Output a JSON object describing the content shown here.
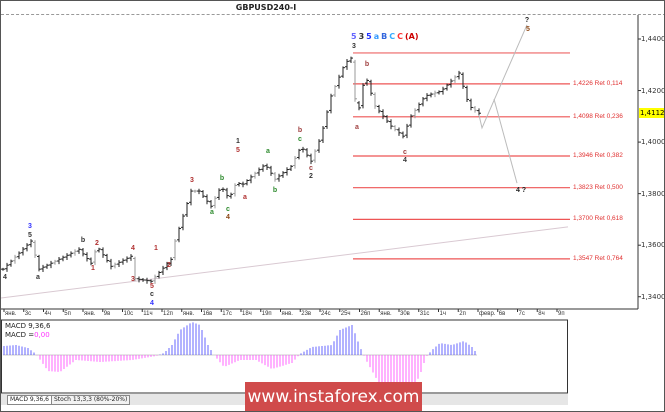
{
  "window": {
    "title": "GBPUSD240-I",
    "current_price": "1,4112"
  },
  "chart_data": {
    "type": "ohlc",
    "symbol": "GBPUSD240-I",
    "ylim": [
      1.338,
      1.448
    ],
    "y_ticks": [
      "1,4400",
      "1,4200",
      "1,4000",
      "1,3800",
      "1,3600",
      "1,3400"
    ],
    "y_tick_values": [
      1.44,
      1.42,
      1.4,
      1.38,
      1.36,
      1.34
    ],
    "x_tick_labels": [
      "янв.",
      "3с",
      "4ч",
      "5п",
      "янв.",
      "9в",
      "10с",
      "11ч",
      "12п",
      "янв.",
      "16в",
      "17с",
      "18ч",
      "19п",
      "янв.",
      "23в",
      "24с",
      "25ч",
      "26п",
      "янв.",
      "30в",
      "31с",
      "1ч",
      "2п",
      "февр.",
      "6в",
      "7с",
      "8ч",
      "9п"
    ],
    "price_path_waypoints": [
      [
        0,
        1.3507
      ],
      [
        7,
        1.3616
      ],
      [
        9,
        1.3507
      ],
      [
        19,
        1.3584
      ],
      [
        22,
        1.353
      ],
      [
        23.5,
        1.3596
      ],
      [
        27,
        1.3518
      ],
      [
        32,
        1.3557
      ],
      [
        33,
        1.347
      ],
      [
        37,
        1.346
      ],
      [
        42,
        1.3545
      ],
      [
        43,
        1.3616
      ],
      [
        47,
        1.381
      ],
      [
        49,
        1.381
      ],
      [
        52,
        1.3751
      ],
      [
        54.5,
        1.3829
      ],
      [
        56.5,
        1.378
      ],
      [
        58.5,
        1.3849
      ],
      [
        59.5,
        1.383
      ],
      [
        65.5,
        1.3914
      ],
      [
        68,
        1.3856
      ],
      [
        72,
        1.3906
      ],
      [
        74.5,
        1.3984
      ],
      [
        77,
        1.3926
      ],
      [
        79.5,
        1.4023
      ],
      [
        82,
        1.4179
      ],
      [
        85.5,
        1.4307
      ],
      [
        87,
        1.4326
      ],
      [
        88.5,
        1.4089
      ],
      [
        90.5,
        1.4264
      ],
      [
        93,
        1.414
      ],
      [
        97,
        1.4062
      ],
      [
        100,
        1.4023
      ],
      [
        102,
        1.4101
      ],
      [
        105.5,
        1.4179
      ],
      [
        109.5,
        1.4198
      ],
      [
        114,
        1.4268
      ],
      [
        116.5,
        1.414
      ],
      [
        119,
        1.4112
      ]
    ],
    "bar_count": 120,
    "fib_top_price": 1.4346,
    "fib_levels": [
      {
        "price": 1.4226,
        "label": "1,4226 Ret 0,114"
      },
      {
        "price": 1.4098,
        "label": "1,4098 Ret 0,236"
      },
      {
        "price": 1.3946,
        "label": "1,3946 Ret 0,382"
      },
      {
        "price": 1.3823,
        "label": "1,3823 Ret 0,500"
      },
      {
        "price": 1.37,
        "label": "1,3700 Ret 0,618"
      },
      {
        "price": 1.3547,
        "label": "1,3547 Ret 0,764"
      }
    ],
    "trendline": [
      [
        -0.5,
        1.3395
      ],
      [
        141.25,
        1.3671
      ]
    ],
    "projections": [
      [
        [
          119,
          1.4105
        ],
        [
          119.75,
          1.4055
        ],
        [
          131,
          1.4455
        ]
      ],
      [
        [
          122.75,
          1.4167
        ],
        [
          128.5,
          1.3841
        ]
      ]
    ],
    "wave_labels": [
      {
        "t": "3",
        "c": "#3333ff",
        "b": 6.75,
        "p": 1.367
      },
      {
        "t": "5",
        "c": "#333333",
        "b": 6.75,
        "p": 1.3639
      },
      {
        "t": "4",
        "c": "#333333",
        "b": 0.5,
        "p": 1.3473
      },
      {
        "t": "a",
        "c": "#333333",
        "b": 8.75,
        "p": 1.3473
      },
      {
        "t": "b",
        "c": "#333333",
        "b": 20,
        "p": 1.3616
      },
      {
        "t": "2",
        "c": "#b03030",
        "b": 23.5,
        "p": 1.3605
      },
      {
        "t": "1",
        "c": "#b03030",
        "b": 22.5,
        "p": 1.3508
      },
      {
        "t": "4",
        "c": "#b03030",
        "b": 32.5,
        "p": 1.3585
      },
      {
        "t": "3",
        "c": "#b03030",
        "b": 32.5,
        "p": 1.3465
      },
      {
        "t": "1",
        "c": "#b03030",
        "b": 38.25,
        "p": 1.3585
      },
      {
        "t": "2",
        "c": "#b03030",
        "b": 41.5,
        "p": 1.3519
      },
      {
        "t": "5",
        "c": "#b03030",
        "b": 37.25,
        "p": 1.3438
      },
      {
        "t": "c",
        "c": "#333333",
        "b": 37.25,
        "p": 1.3411
      },
      {
        "t": "4",
        "c": "#3333ff",
        "b": 37.25,
        "p": 1.3376
      },
      {
        "t": "3",
        "c": "#b03030",
        "b": 47.25,
        "p": 1.3849
      },
      {
        "t": "a",
        "c": "#2e8b2e",
        "b": 52.25,
        "p": 1.3725
      },
      {
        "t": "b",
        "c": "#2e8b2e",
        "b": 54.75,
        "p": 1.3857
      },
      {
        "t": "c",
        "c": "#2e8b2e",
        "b": 56.25,
        "p": 1.3737
      },
      {
        "t": "4",
        "c": "#8b4513",
        "b": 56.25,
        "p": 1.3713
      },
      {
        "t": "1",
        "c": "#333333",
        "b": 58.75,
        "p": 1.4
      },
      {
        "t": "5",
        "c": "#b03030",
        "b": 58.75,
        "p": 1.3969
      },
      {
        "t": "a",
        "c": "#b03030",
        "b": 60.5,
        "p": 1.3783
      },
      {
        "t": "a",
        "c": "#2e8b2e",
        "b": 66.25,
        "p": 1.3962
      },
      {
        "t": "b",
        "c": "#2e8b2e",
        "b": 68,
        "p": 1.381
      },
      {
        "t": "b",
        "c": "#a04040",
        "b": 74.25,
        "p": 1.4043
      },
      {
        "t": "c",
        "c": "#2e8b2e",
        "b": 74.25,
        "p": 1.402
      },
      {
        "t": "c",
        "c": "#a04040",
        "b": 77,
        "p": 1.3896
      },
      {
        "t": "2",
        "c": "#333333",
        "b": 77,
        "p": 1.3865
      },
      {
        "t": "3",
        "c": "#333333",
        "b": 87.75,
        "p": 1.4369
      },
      {
        "t": "b",
        "c": "#a04040",
        "b": 91,
        "p": 1.4299
      },
      {
        "t": "a",
        "c": "#a04040",
        "b": 88.5,
        "p": 1.4055
      },
      {
        "t": "c",
        "c": "#a04040",
        "b": 100.5,
        "p": 1.3958
      },
      {
        "t": "4",
        "c": "#333333",
        "b": 100.5,
        "p": 1.3927
      },
      {
        "t": "?",
        "c": "#222222",
        "b": 131,
        "p": 1.447
      },
      {
        "t": "5",
        "c": "#8b4513",
        "b": 131.25,
        "p": 1.4435
      },
      {
        "t": "4 ?",
        "c": "#222222",
        "b": 129.5,
        "p": 1.381
      }
    ],
    "top_wave_labels": [
      {
        "t": "5",
        "c": "#6666ff"
      },
      {
        "t": "3",
        "c": "#333333"
      },
      {
        "t": "5",
        "c": "#2233ff"
      },
      {
        "t": "a",
        "c": "#3399ff"
      },
      {
        "t": "B",
        "c": "#3366dd"
      },
      {
        "t": "C",
        "c": "#33aaff"
      },
      {
        "t": "C",
        "c": "#ff3333"
      },
      {
        "t": "(A)",
        "c": "#cc0000"
      }
    ],
    "macd": {
      "name": "MACD 9,36,6",
      "value_label": "MACD =",
      "value": "0,00",
      "positive_color": "#3333ff",
      "negative_color": "#ff33ff",
      "histogram_waypoints": [
        [
          0,
          0.0009
        ],
        [
          3,
          0.001
        ],
        [
          6,
          0.0007
        ],
        [
          8,
          0.0001
        ],
        [
          11,
          -0.0016
        ],
        [
          14,
          -0.0017
        ],
        [
          18,
          -0.0005
        ],
        [
          24,
          -0.0007
        ],
        [
          32,
          -0.0005
        ],
        [
          38,
          -0.0001
        ],
        [
          40,
          0.0002
        ],
        [
          42,
          0.001
        ],
        [
          44,
          0.0025
        ],
        [
          47,
          0.0033
        ],
        [
          49,
          0.003
        ],
        [
          51,
          0.001
        ],
        [
          52.5,
          0.0
        ],
        [
          55,
          -0.0012
        ],
        [
          59,
          -0.0005
        ],
        [
          63,
          -0.0005
        ],
        [
          67,
          -0.0014
        ],
        [
          72,
          -0.0008
        ],
        [
          74,
          0.0001
        ],
        [
          77,
          0.0008
        ],
        [
          82,
          0.001
        ],
        [
          84,
          0.0025
        ],
        [
          87,
          0.003
        ],
        [
          89,
          0.0008
        ],
        [
          90.5,
          -0.0005
        ],
        [
          94,
          -0.003
        ],
        [
          98,
          -0.0036
        ],
        [
          102,
          -0.0035
        ],
        [
          104,
          -0.002
        ],
        [
          105.5,
          -0.0002
        ],
        [
          107,
          0.0005
        ],
        [
          109,
          0.0012
        ],
        [
          112,
          0.001
        ],
        [
          115,
          0.0014
        ],
        [
          117,
          0.0008
        ],
        [
          118.5,
          0.0
        ]
      ]
    }
  },
  "indicator_tabs": [
    "MACD 9,36,6",
    "Stoch 13,3,3 (80%-20%)"
  ],
  "watermark": "www.instaforex.com"
}
